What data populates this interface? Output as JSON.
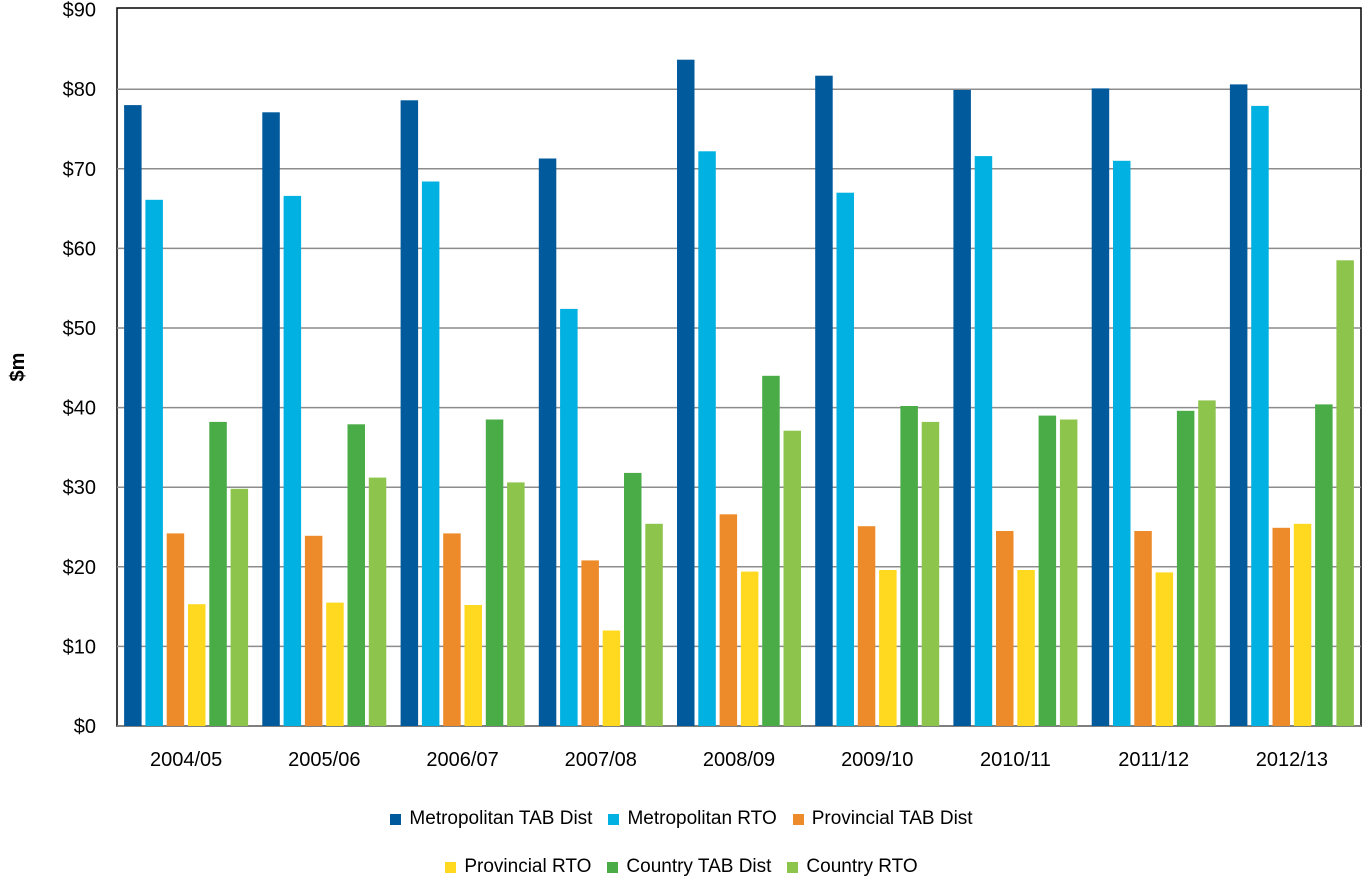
{
  "chart_data": {
    "type": "bar",
    "title": "",
    "xlabel": "",
    "ylabel": "$m",
    "ylim": [
      0,
      90
    ],
    "grid": true,
    "legend_position": "bottom",
    "y_tick_labels": [
      "$0",
      "$10",
      "$20",
      "$30",
      "$40",
      "$50",
      "$60",
      "$70",
      "$80",
      "$90"
    ],
    "categories": [
      "2004/05",
      "2005/06",
      "2006/07",
      "2007/08",
      "2008/09",
      "2009/10",
      "2010/11",
      "2011/12",
      "2012/13"
    ],
    "series": [
      {
        "name": "Metropolitan TAB Dist",
        "color": "#005a9c",
        "values": [
          78.0,
          77.1,
          78.6,
          71.3,
          83.7,
          81.7,
          79.9,
          80.1,
          80.6
        ]
      },
      {
        "name": "Metropolitan RTO",
        "color": "#00b1e2",
        "values": [
          66.1,
          66.6,
          68.4,
          52.4,
          72.2,
          67.0,
          71.6,
          71.0,
          77.9
        ]
      },
      {
        "name": "Provincial TAB Dist",
        "color": "#ed8b2b",
        "values": [
          24.2,
          23.9,
          24.2,
          20.8,
          26.6,
          25.1,
          24.5,
          24.5,
          24.9
        ]
      },
      {
        "name": "Provincial RTO",
        "color": "#fed91f",
        "values": [
          15.3,
          15.5,
          15.2,
          12.0,
          19.4,
          19.6,
          19.6,
          19.3,
          25.4
        ]
      },
      {
        "name": "Country TAB Dist",
        "color": "#4aac47",
        "values": [
          38.2,
          37.9,
          38.5,
          31.8,
          44.0,
          40.2,
          39.0,
          39.6,
          40.4
        ]
      },
      {
        "name": "Country RTO",
        "color": "#8dc44c",
        "values": [
          29.8,
          31.2,
          30.6,
          25.4,
          37.1,
          38.2,
          38.5,
          40.9,
          58.5
        ]
      }
    ],
    "legend_rows": [
      [
        "Metropolitan TAB Dist",
        "Metropolitan RTO",
        "Provincial TAB Dist"
      ],
      [
        "Provincial RTO",
        "Country TAB Dist",
        "Country RTO"
      ]
    ]
  }
}
